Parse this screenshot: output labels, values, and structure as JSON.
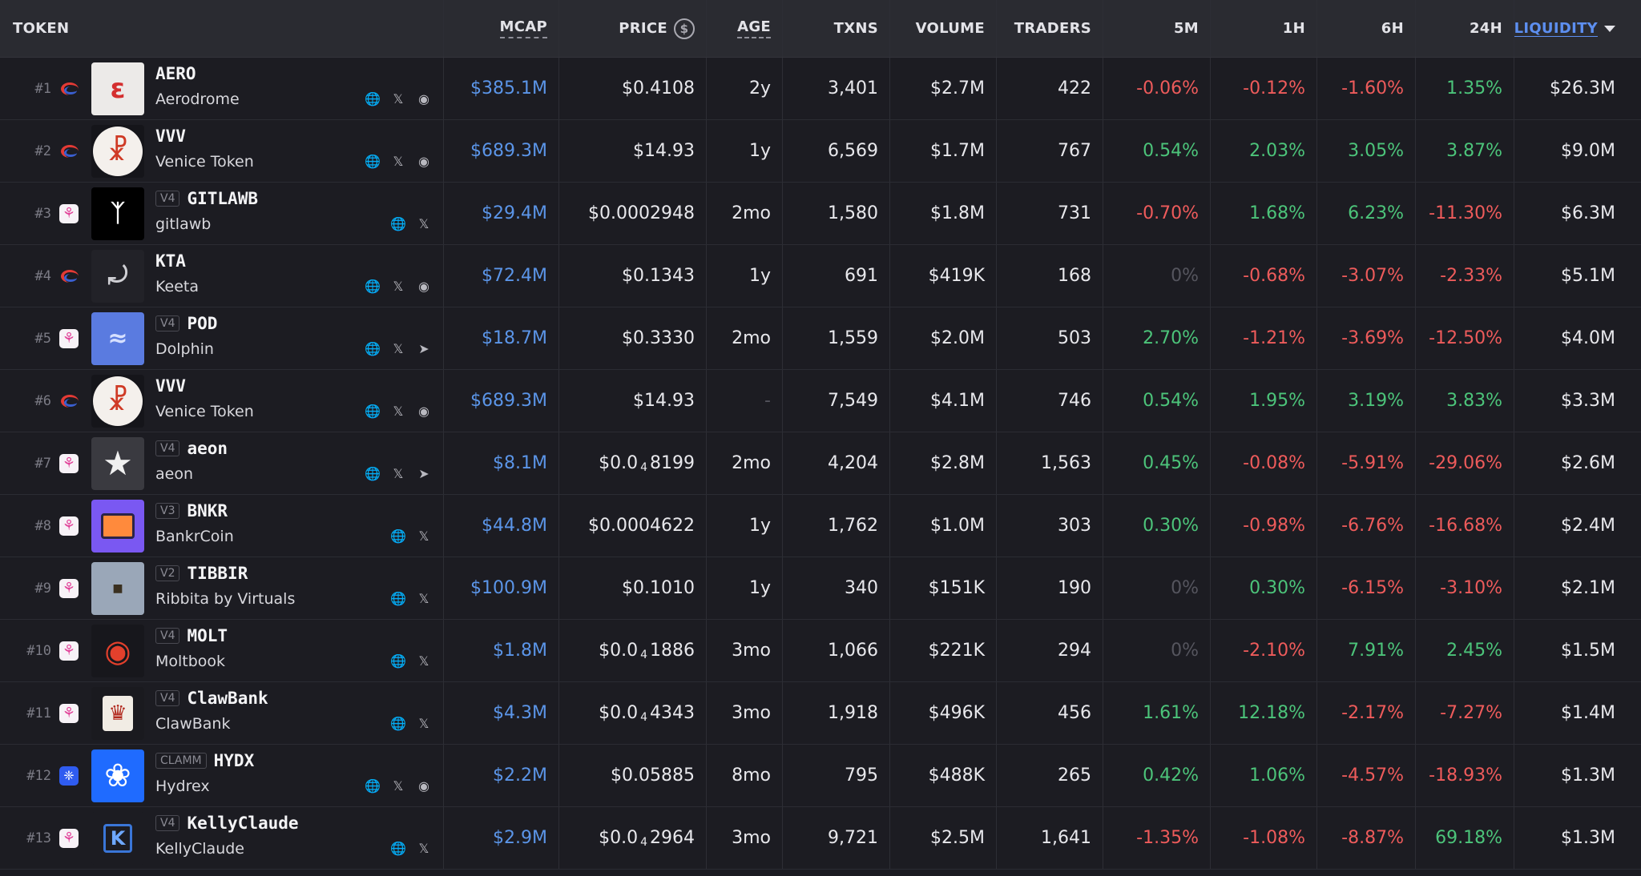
{
  "header": {
    "token": "TOKEN",
    "mcap": "MCAP",
    "price": "PRICE",
    "age": "AGE",
    "txns": "TXNS",
    "volume": "VOLUME",
    "traders": "TRADERS",
    "m5": "5M",
    "h1": "1H",
    "h6": "6H",
    "h24": "24H",
    "liquidity": "LIQUIDITY"
  },
  "rows": [
    {
      "rank": "#1",
      "chain": "aerodrome",
      "version": "",
      "symbol": "AERO",
      "name": "Aerodrome",
      "socials": [
        "globe-icon",
        "x-icon",
        "discord-icon"
      ],
      "mcap": "$385.1M",
      "price": "$0.4108",
      "age": "2y",
      "txns": "3,401",
      "volume": "$2.7M",
      "traders": "422",
      "m5": "-0.06%",
      "h1": "-0.12%",
      "h6": "-1.60%",
      "h24": "1.35%",
      "liquidity": "$26.3M"
    },
    {
      "rank": "#2",
      "chain": "aerodrome",
      "version": "",
      "symbol": "VVV",
      "name": "Venice Token",
      "socials": [
        "globe-icon",
        "x-icon",
        "discord-icon"
      ],
      "mcap": "$689.3M",
      "price": "$14.93",
      "age": "1y",
      "txns": "6,569",
      "volume": "$1.7M",
      "traders": "767",
      "m5": "0.54%",
      "h1": "2.03%",
      "h6": "3.05%",
      "h24": "3.87%",
      "liquidity": "$9.0M"
    },
    {
      "rank": "#3",
      "chain": "uniswap",
      "version": "V4",
      "symbol": "GITLAWB",
      "name": "gitlawb",
      "socials": [
        "globe-icon",
        "x-icon"
      ],
      "mcap": "$29.4M",
      "price": "$0.0002948",
      "age": "2mo",
      "txns": "1,580",
      "volume": "$1.8M",
      "traders": "731",
      "m5": "-0.70%",
      "h1": "1.68%",
      "h6": "6.23%",
      "h24": "-11.30%",
      "liquidity": "$6.3M"
    },
    {
      "rank": "#4",
      "chain": "aerodrome",
      "version": "",
      "symbol": "KTA",
      "name": "Keeta",
      "socials": [
        "globe-icon",
        "x-icon",
        "discord-icon"
      ],
      "mcap": "$72.4M",
      "price": "$0.1343",
      "age": "1y",
      "txns": "691",
      "volume": "$419K",
      "traders": "168",
      "m5": "0%",
      "h1": "-0.68%",
      "h6": "-3.07%",
      "h24": "-2.33%",
      "liquidity": "$5.1M"
    },
    {
      "rank": "#5",
      "chain": "uniswap",
      "version": "V4",
      "symbol": "POD",
      "name": "Dolphin",
      "socials": [
        "globe-icon",
        "x-icon",
        "telegram-icon"
      ],
      "mcap": "$18.7M",
      "price": "$0.3330",
      "age": "2mo",
      "txns": "1,559",
      "volume": "$2.0M",
      "traders": "503",
      "m5": "2.70%",
      "h1": "-1.21%",
      "h6": "-3.69%",
      "h24": "-12.50%",
      "liquidity": "$4.0M"
    },
    {
      "rank": "#6",
      "chain": "aerodrome",
      "version": "",
      "symbol": "VVV",
      "name": "Venice Token",
      "socials": [
        "globe-icon",
        "x-icon",
        "discord-icon"
      ],
      "mcap": "$689.3M",
      "price": "$14.93",
      "age": "-",
      "txns": "7,549",
      "volume": "$4.1M",
      "traders": "746",
      "m5": "0.54%",
      "h1": "1.95%",
      "h6": "3.19%",
      "h24": "3.83%",
      "liquidity": "$3.3M"
    },
    {
      "rank": "#7",
      "chain": "uniswap",
      "version": "V4",
      "symbol": "aeon",
      "name": "aeon",
      "socials": [
        "globe-icon",
        "x-icon",
        "telegram-icon"
      ],
      "mcap": "$8.1M",
      "price": "$0.0",
      "price_sub": "4",
      "price_tail": "8199",
      "age": "2mo",
      "txns": "4,204",
      "volume": "$2.8M",
      "traders": "1,563",
      "m5": "0.45%",
      "h1": "-0.08%",
      "h6": "-5.91%",
      "h24": "-29.06%",
      "liquidity": "$2.6M"
    },
    {
      "rank": "#8",
      "chain": "uniswap",
      "version": "V3",
      "symbol": "BNKR",
      "name": "BankrCoin",
      "socials": [
        "globe-icon",
        "x-icon"
      ],
      "mcap": "$44.8M",
      "price": "$0.0004622",
      "age": "1y",
      "txns": "1,762",
      "volume": "$1.0M",
      "traders": "303",
      "m5": "0.30%",
      "h1": "-0.98%",
      "h6": "-6.76%",
      "h24": "-16.68%",
      "liquidity": "$2.4M"
    },
    {
      "rank": "#9",
      "chain": "uniswap",
      "version": "V2",
      "symbol": "TIBBIR",
      "name": "Ribbita by Virtuals",
      "socials": [
        "globe-icon",
        "x-icon"
      ],
      "mcap": "$100.9M",
      "price": "$0.1010",
      "age": "1y",
      "txns": "340",
      "volume": "$151K",
      "traders": "190",
      "m5": "0%",
      "h1": "0.30%",
      "h6": "-6.15%",
      "h24": "-3.10%",
      "liquidity": "$2.1M"
    },
    {
      "rank": "#10",
      "chain": "uniswap",
      "version": "V4",
      "symbol": "MOLT",
      "name": "Moltbook",
      "socials": [
        "globe-icon",
        "x-icon"
      ],
      "mcap": "$1.8M",
      "price": "$0.0",
      "price_sub": "4",
      "price_tail": "1886",
      "age": "3mo",
      "txns": "1,066",
      "volume": "$221K",
      "traders": "294",
      "m5": "0%",
      "h1": "-2.10%",
      "h6": "7.91%",
      "h24": "2.45%",
      "liquidity": "$1.5M"
    },
    {
      "rank": "#11",
      "chain": "uniswap",
      "version": "V4",
      "symbol": "ClawBank",
      "name": "ClawBank",
      "socials": [
        "globe-icon",
        "x-icon"
      ],
      "mcap": "$4.3M",
      "price": "$0.0",
      "price_sub": "4",
      "price_tail": "4343",
      "age": "3mo",
      "txns": "1,918",
      "volume": "$496K",
      "traders": "456",
      "m5": "1.61%",
      "h1": "12.18%",
      "h6": "-2.17%",
      "h24": "-7.27%",
      "liquidity": "$1.4M"
    },
    {
      "rank": "#12",
      "chain": "hydrex",
      "version": "CLAMM",
      "symbol": "HYDX",
      "name": "Hydrex",
      "socials": [
        "globe-icon",
        "x-icon",
        "discord-icon"
      ],
      "mcap": "$2.2M",
      "price": "$0.05885",
      "age": "8mo",
      "txns": "795",
      "volume": "$488K",
      "traders": "265",
      "m5": "0.42%",
      "h1": "1.06%",
      "h6": "-4.57%",
      "h24": "-18.93%",
      "liquidity": "$1.3M"
    },
    {
      "rank": "#13",
      "chain": "uniswap",
      "version": "V4",
      "symbol": "KellyClaude",
      "name": "KellyClaude",
      "socials": [
        "globe-icon",
        "x-icon"
      ],
      "mcap": "$2.9M",
      "price": "$0.0",
      "price_sub": "4",
      "price_tail": "2964",
      "age": "3mo",
      "txns": "9,721",
      "volume": "$2.5M",
      "traders": "1,641",
      "m5": "-1.35%",
      "h1": "-1.08%",
      "h6": "-8.87%",
      "h24": "69.18%",
      "liquidity": "$1.3M"
    }
  ],
  "colors": {
    "positive": "#4cc47a",
    "negative": "#ee5b5b",
    "neutral": "#55555e",
    "mcap": "#5b95e8",
    "sorted_header": "#5d8ff0"
  }
}
